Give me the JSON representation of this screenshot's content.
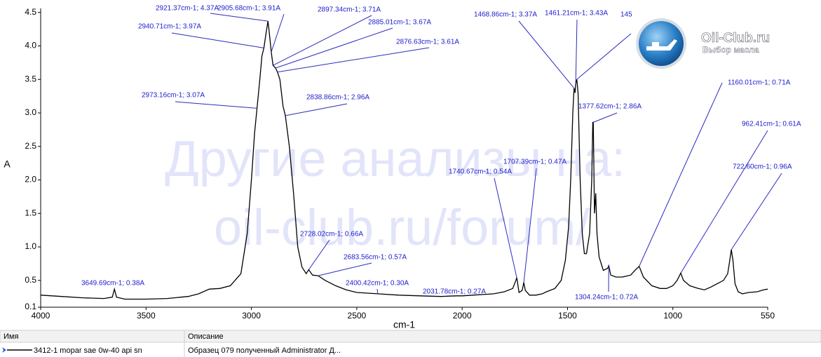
{
  "chart_data": {
    "type": "line",
    "xlabel": "cm-1",
    "ylabel": "A",
    "xlim": [
      4000,
      550
    ],
    "ylim": [
      0.1,
      4.56
    ],
    "xticks": [
      4000,
      3500,
      3000,
      2500,
      2000,
      1500,
      1000,
      550
    ],
    "yticks": [
      0.1,
      0.5,
      {
        "value": 1,
        "label": "1.0"
      },
      1.5,
      {
        "value": 2,
        "label": "2.0"
      },
      2.5,
      {
        "value": 3,
        "label": "3.0"
      },
      3.5,
      {
        "value": 4,
        "label": "4.0"
      },
      4.5
    ],
    "x": [
      4000,
      3900,
      3800,
      3700,
      3660,
      3650,
      3640,
      3600,
      3500,
      3400,
      3300,
      3250,
      3200,
      3150,
      3100,
      3050,
      3020,
      3000,
      2985,
      2973.16,
      2960,
      2950,
      2940.71,
      2930,
      2921.37,
      2915,
      2905.68,
      2897.34,
      2885.01,
      2876.63,
      2865,
      2850,
      2838.86,
      2820,
      2800,
      2780,
      2760,
      2740,
      2728.02,
      2710,
      2683.56,
      2650,
      2600,
      2550,
      2500,
      2400.42,
      2300,
      2200,
      2100,
      2031.78,
      2000,
      1950,
      1900,
      1850,
      1800,
      1760,
      1745,
      1740.67,
      1730,
      1715,
      1707.39,
      1700,
      1680,
      1650,
      1620,
      1600,
      1560,
      1530,
      1510,
      1495,
      1485,
      1475,
      1468.86,
      1464,
      1461.21,
      1456,
      1450,
      1440,
      1430,
      1420,
      1410,
      1395,
      1385,
      1380,
      1377.62,
      1372,
      1366,
      1360,
      1350,
      1330,
      1310,
      1304.24,
      1295,
      1270,
      1240,
      1200,
      1180,
      1160.01,
      1140,
      1100,
      1060,
      1030,
      1000,
      980,
      962.41,
      950,
      920,
      880,
      850,
      820,
      790,
      760,
      740,
      730,
      722.6,
      715,
      705,
      690,
      670,
      640,
      600,
      570,
      550
    ],
    "series": [
      {
        "color": "#000000",
        "values": [
          0.28,
          0.26,
          0.24,
          0.23,
          0.25,
          0.37,
          0.25,
          0.22,
          0.22,
          0.23,
          0.26,
          0.3,
          0.37,
          0.38,
          0.42,
          0.6,
          1.2,
          2.0,
          2.7,
          3.07,
          3.5,
          3.85,
          3.97,
          4.2,
          4.37,
          4.2,
          3.91,
          3.71,
          3.67,
          3.61,
          3.5,
          3.1,
          2.96,
          2.5,
          1.8,
          1.0,
          0.7,
          0.6,
          0.66,
          0.58,
          0.57,
          0.5,
          0.42,
          0.36,
          0.32,
          0.3,
          0.28,
          0.27,
          0.26,
          0.27,
          0.27,
          0.28,
          0.29,
          0.3,
          0.33,
          0.38,
          0.5,
          0.54,
          0.32,
          0.35,
          0.47,
          0.35,
          0.28,
          0.28,
          0.3,
          0.33,
          0.38,
          0.5,
          0.8,
          1.3,
          2.0,
          3.0,
          3.37,
          3.3,
          3.43,
          3.5,
          3.3,
          2.0,
          1.2,
          0.9,
          0.9,
          1.2,
          2.0,
          2.86,
          2.86,
          1.5,
          1.8,
          1.2,
          0.85,
          0.65,
          0.68,
          0.72,
          0.58,
          0.55,
          0.55,
          0.58,
          0.65,
          0.71,
          0.55,
          0.42,
          0.38,
          0.38,
          0.42,
          0.5,
          0.61,
          0.5,
          0.42,
          0.38,
          0.36,
          0.4,
          0.45,
          0.5,
          0.6,
          0.8,
          0.96,
          0.8,
          0.45,
          0.33,
          0.3,
          0.32,
          0.33,
          0.36,
          0.37
        ]
      }
    ],
    "annotations": [
      {
        "label": "2921.37cm-1; 4.37A",
        "x": 2921.37,
        "y": 4.37
      },
      {
        "label": "2940.71cm-1; 3.97A",
        "x": 2940.71,
        "y": 3.97
      },
      {
        "label": "2905.68cm-1; 3.91A",
        "x": 2905.68,
        "y": 3.91
      },
      {
        "label": "2897.34cm-1; 3.71A",
        "x": 2897.34,
        "y": 3.71
      },
      {
        "label": "2885.01cm-1; 3.67A",
        "x": 2885.01,
        "y": 3.67
      },
      {
        "label": "2876.63cm-1; 3.61A",
        "x": 2876.63,
        "y": 3.61
      },
      {
        "label": "2973.16cm-1; 3.07A",
        "x": 2973.16,
        "y": 3.07
      },
      {
        "label": "2838.86cm-1; 2.96A",
        "x": 2838.86,
        "y": 2.96
      },
      {
        "label": "2728.02cm-1; 0.66A",
        "x": 2728.02,
        "y": 0.66
      },
      {
        "label": "2683.56cm-1; 0.57A",
        "x": 2683.56,
        "y": 0.57
      },
      {
        "label": "2400.42cm-1; 0.30A",
        "x": 2400.42,
        "y": 0.3
      },
      {
        "label": "2031.78cm-1; 0.27A",
        "x": 2031.78,
        "y": 0.27
      },
      {
        "label": "3649.69cm-1; 0.38A",
        "x": 3649.69,
        "y": 0.38
      },
      {
        "label": "1740.67cm-1; 0.54A",
        "x": 1740.67,
        "y": 0.54
      },
      {
        "label": "1707.39cm-1; 0.47A",
        "x": 1707.39,
        "y": 0.47
      },
      {
        "label": "1468.86cm-1; 3.37A",
        "x": 1468.86,
        "y": 3.37
      },
      {
        "label": "1461.21cm-1; 3.43A",
        "x": 1461.21,
        "y": 3.43
      },
      {
        "label": "145",
        "x": 1456,
        "y": 3.5
      },
      {
        "label": "1377.62cm-1; 2.86A",
        "x": 1377.62,
        "y": 2.86
      },
      {
        "label": "1160.01cm-1; 0.71A",
        "x": 1160.01,
        "y": 0.71
      },
      {
        "label": "962.41cm-1; 0.61A",
        "x": 962.41,
        "y": 0.61
      },
      {
        "label": "722.60cm-1; 0.96A",
        "x": 722.6,
        "y": 0.96
      },
      {
        "label": "1304.24cm-1; 0.72A",
        "x": 1304.24,
        "y": 0.72
      }
    ]
  },
  "watermark": {
    "line1": "Другие анализы на:",
    "line2": "oil-club.ru/forum/"
  },
  "logo": {
    "title": "Oil-Club.ru",
    "subtitle": "Выбор масла"
  },
  "table": {
    "headers": [
      "Имя",
      "Описание"
    ],
    "rows": [
      [
        "3412-1 mopar sae 0w-40 api sn",
        "Образец 079 полученный Administrator Д..."
      ]
    ]
  }
}
